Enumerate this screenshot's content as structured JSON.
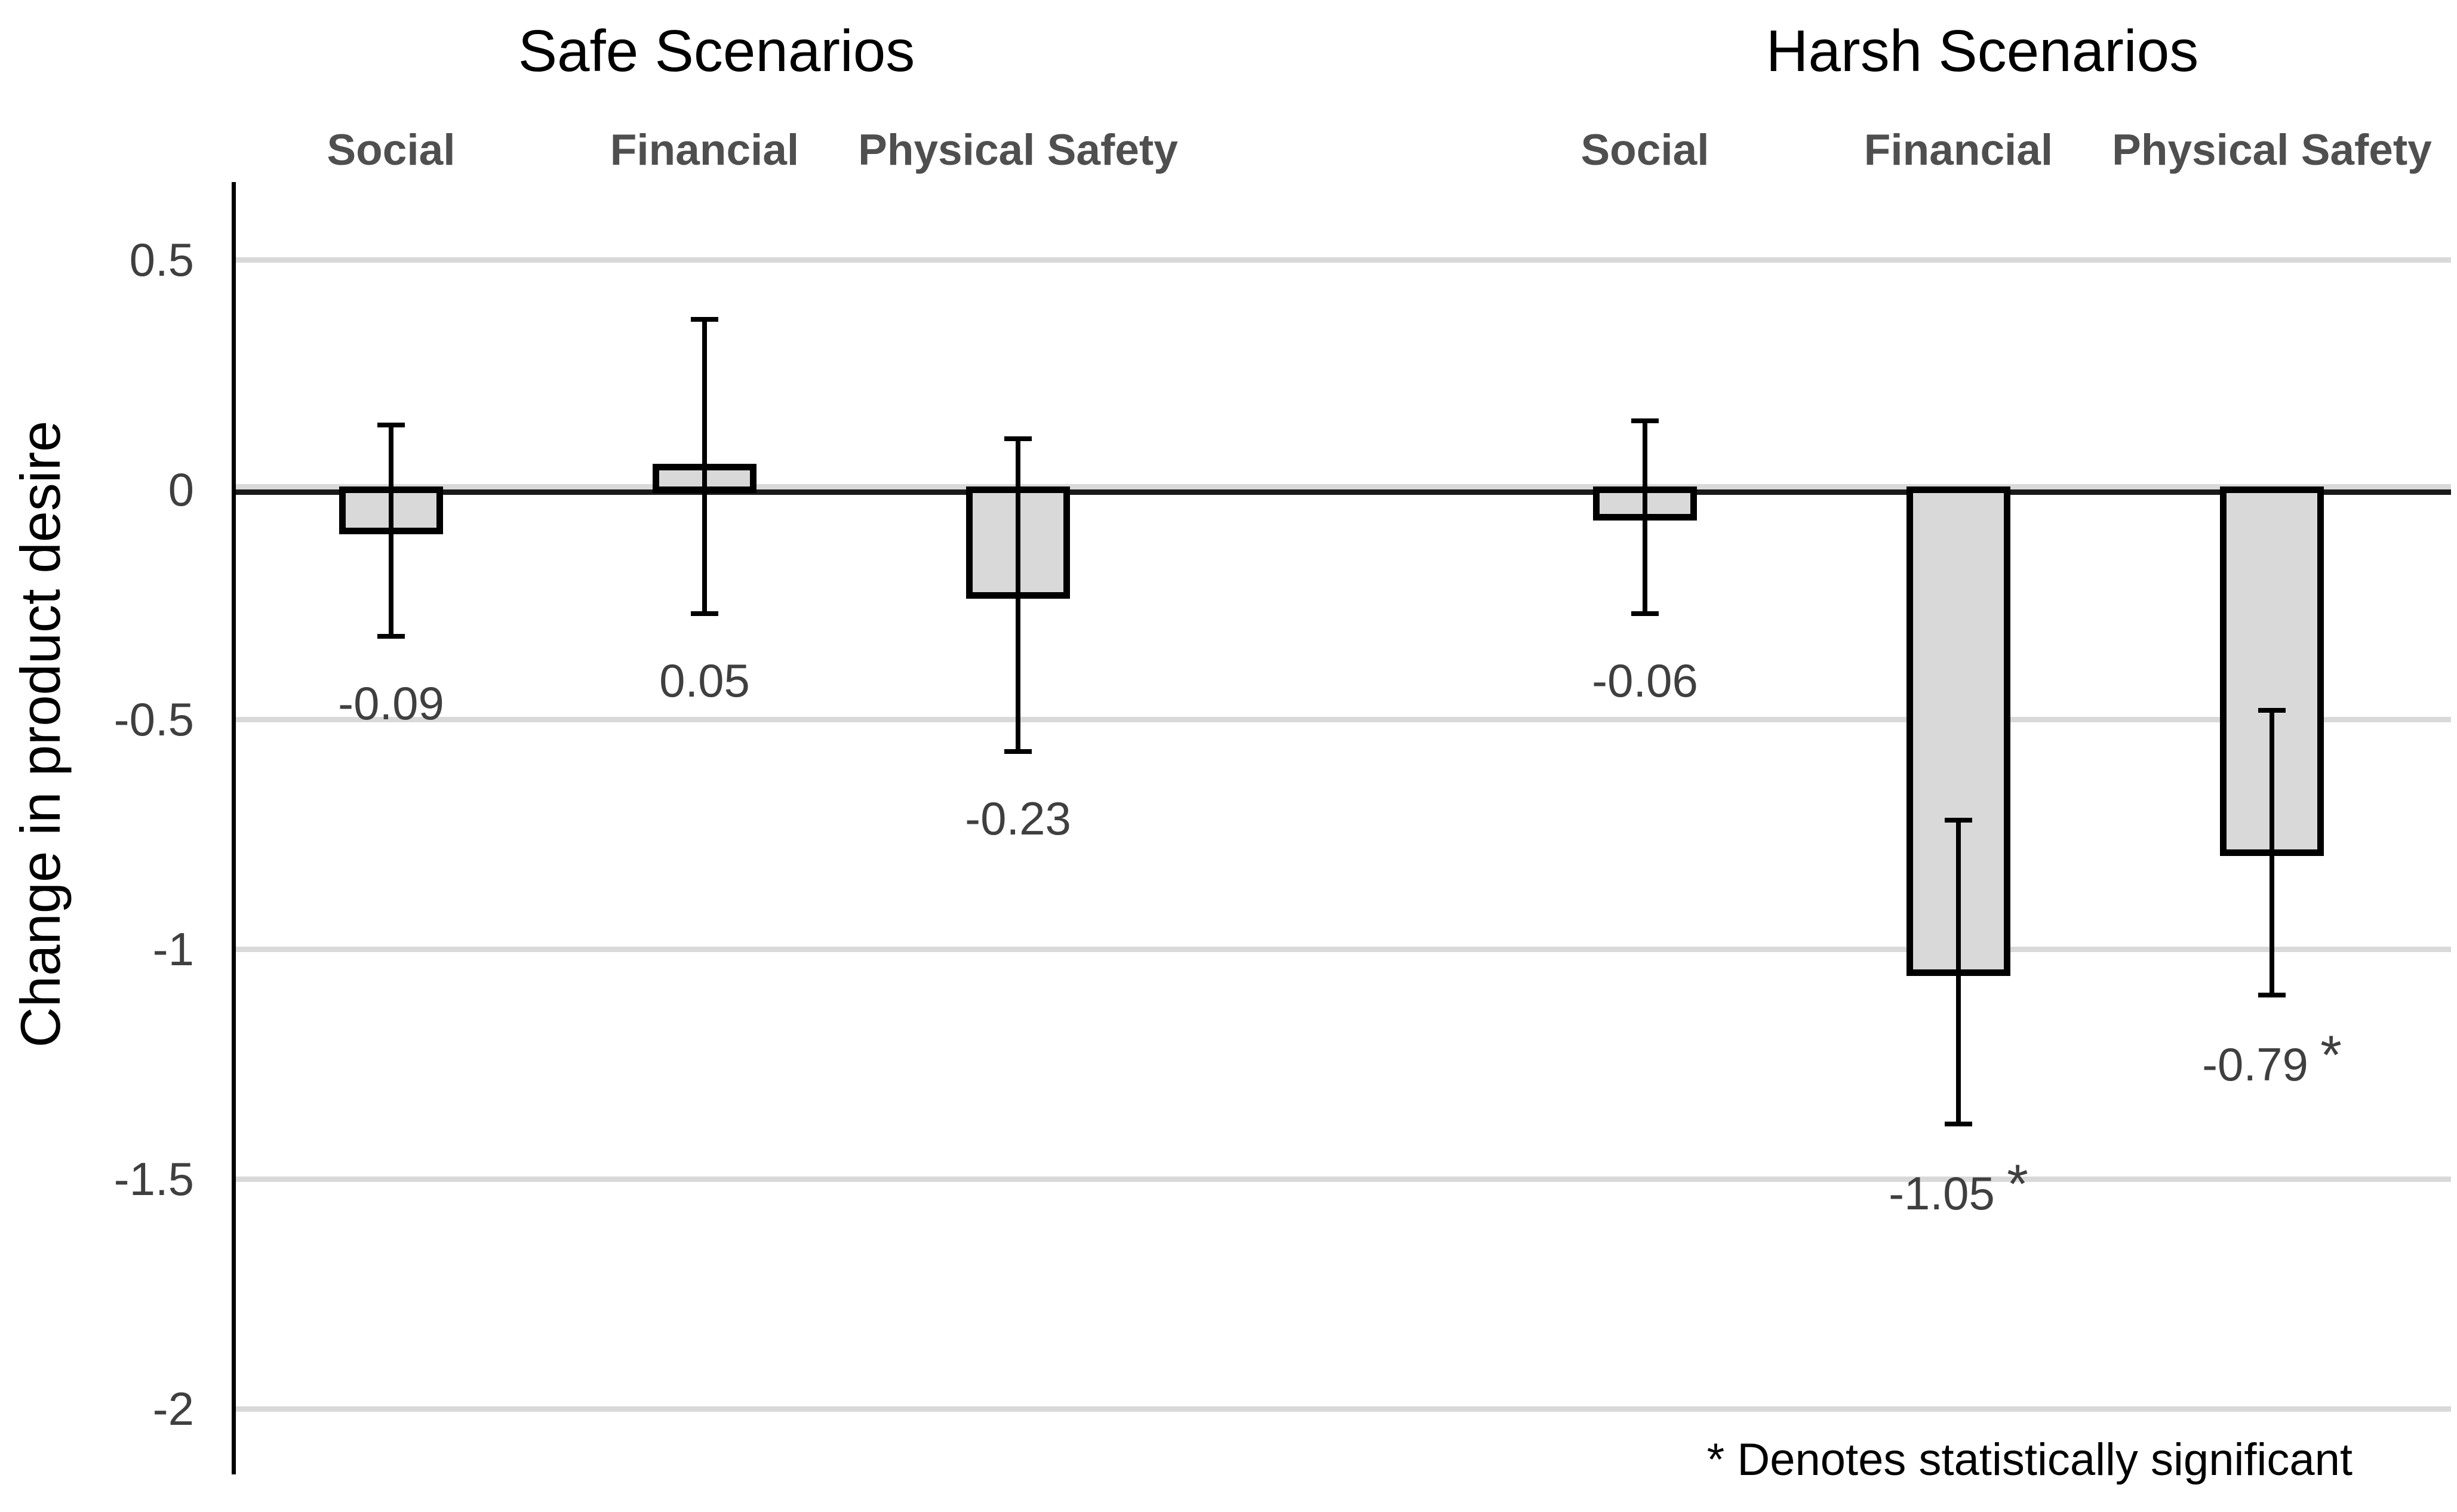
{
  "chart_data": {
    "type": "bar",
    "ylabel": "Change in product desire",
    "ytick_labels": [
      "0.5",
      "0",
      "-0.5",
      "-1",
      "-1.5",
      "-2"
    ],
    "yticks": [
      0.5,
      0,
      -0.5,
      -1,
      -1.5,
      -2
    ],
    "ylim": [
      -2.3,
      0.62
    ],
    "grid": "horizontal-gray",
    "legend": "none",
    "bar_fill_color": "#d9d9d9",
    "bar_border_color": "#000000",
    "gridline_color": "#d9d9d9",
    "zero_line_color": "#1a1a1a",
    "tick_label_color": "#3f3f3f",
    "category_label_color": "#4f4f4f",
    "value_label_color": "#3f3f3f",
    "significance_marker": "*",
    "footnote": "* Denotes statistically significant",
    "groups": [
      {
        "title": "Safe Scenarios",
        "bars": [
          {
            "category": "Social",
            "value": -0.09,
            "label": "-0.09",
            "error": 0.23,
            "significant": false
          },
          {
            "category": "Financial",
            "value": 0.05,
            "label": "0.05",
            "error": 0.32,
            "significant": false
          },
          {
            "category": "Physical Safety",
            "value": -0.23,
            "label": "-0.23",
            "error": 0.34,
            "significant": false
          }
        ]
      },
      {
        "title": "Harsh Scenarios",
        "bars": [
          {
            "category": "Social",
            "value": -0.06,
            "label": "-0.06",
            "error": 0.21,
            "significant": false
          },
          {
            "category": "Financial",
            "value": -1.05,
            "label": "-1.05",
            "error": 0.33,
            "significant": true
          },
          {
            "category": "Physical Safety",
            "value": -0.79,
            "label": "-0.79",
            "error": 0.31,
            "significant": true
          }
        ]
      }
    ]
  }
}
